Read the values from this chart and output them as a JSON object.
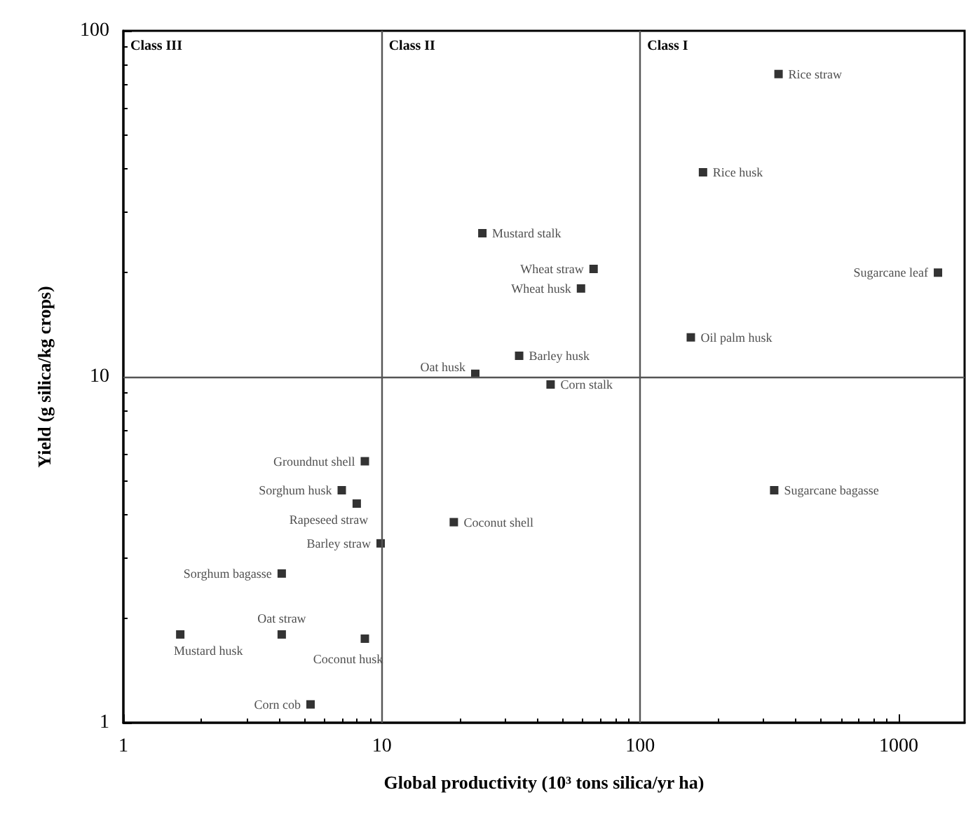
{
  "chart_data": {
    "type": "scatter",
    "xlabel": "Global productivity (10³ tons silica/yr ha)",
    "ylabel": "Yield (g silica/kg crops)",
    "log": "xy",
    "xlim": [
      1,
      1800
    ],
    "ylim": [
      1,
      100
    ],
    "xticks": [
      1,
      10,
      100,
      1000
    ],
    "yticks": [
      1,
      10,
      100
    ],
    "grid": false,
    "legend": false,
    "marker": "square",
    "annotations": [
      "Class III",
      "Class II",
      "Class I"
    ],
    "ref_lines": [
      {
        "axis": "x",
        "value": 10,
        "color": "#555555"
      },
      {
        "axis": "x",
        "value": 100,
        "color": "#555555"
      },
      {
        "axis": "y",
        "value": 10,
        "color": "#555555"
      }
    ],
    "series": [
      {
        "name": "Rice straw",
        "color": "#000000",
        "x": [
          343
        ],
        "values": [
          75
        ]
      },
      {
        "name": "Rice husk",
        "color": "#000000",
        "x": [
          175
        ],
        "values": [
          39
        ]
      },
      {
        "name": "Mustard stalk",
        "color": "#000000",
        "x": [
          24.5
        ],
        "values": [
          26
        ]
      },
      {
        "name": "Wheat straw",
        "color": "#000000",
        "x": [
          66
        ],
        "values": [
          20.5
        ]
      },
      {
        "name": "Wheat husk",
        "color": "#000000",
        "x": [
          59
        ],
        "values": [
          18
        ]
      },
      {
        "name": "Sugarcane leaf",
        "color": "#000000",
        "x": [
          1420
        ],
        "values": [
          20
        ]
      },
      {
        "name": "Oil palm husk",
        "color": "#000000",
        "x": [
          157
        ],
        "values": [
          13
        ]
      },
      {
        "name": "Barley husk",
        "color": "#000000",
        "x": [
          34
        ],
        "values": [
          11.5
        ]
      },
      {
        "name": "Oat husk",
        "color": "#000000",
        "x": [
          23
        ],
        "values": [
          10.2
        ]
      },
      {
        "name": "Corn stalk",
        "color": "#000000",
        "x": [
          45
        ],
        "values": [
          9.5
        ]
      },
      {
        "name": "Sugarcane bagasse",
        "color": "#000000",
        "x": [
          330
        ],
        "values": [
          4.7
        ]
      },
      {
        "name": "Coconut shell",
        "color": "#000000",
        "x": [
          19
        ],
        "values": [
          3.8
        ]
      },
      {
        "name": "Groundnut shell",
        "color": "#000000",
        "x": [
          8.6
        ],
        "values": [
          5.7
        ]
      },
      {
        "name": "Sorghum husk",
        "color": "#000000",
        "x": [
          7.0
        ],
        "values": [
          4.7
        ]
      },
      {
        "name": "Rapeseed straw",
        "color": "#000000",
        "x": [
          8.0
        ],
        "values": [
          4.3
        ]
      },
      {
        "name": "Barley straw",
        "color": "#000000",
        "x": [
          9.9
        ],
        "values": [
          3.3
        ]
      },
      {
        "name": "Sorghum bagasse",
        "color": "#000000",
        "x": [
          4.1
        ],
        "values": [
          2.7
        ]
      },
      {
        "name": "Oat straw",
        "color": "#000000",
        "x": [
          4.1
        ],
        "values": [
          1.8
        ]
      },
      {
        "name": "Mustard husk",
        "color": "#000000",
        "x": [
          1.66
        ],
        "values": [
          1.8
        ]
      },
      {
        "name": "Coconut husk",
        "color": "#000000",
        "x": [
          8.6
        ],
        "values": [
          1.75
        ]
      },
      {
        "name": "Corn cob",
        "color": "#000000",
        "x": [
          5.3
        ],
        "values": [
          1.13
        ]
      }
    ]
  }
}
